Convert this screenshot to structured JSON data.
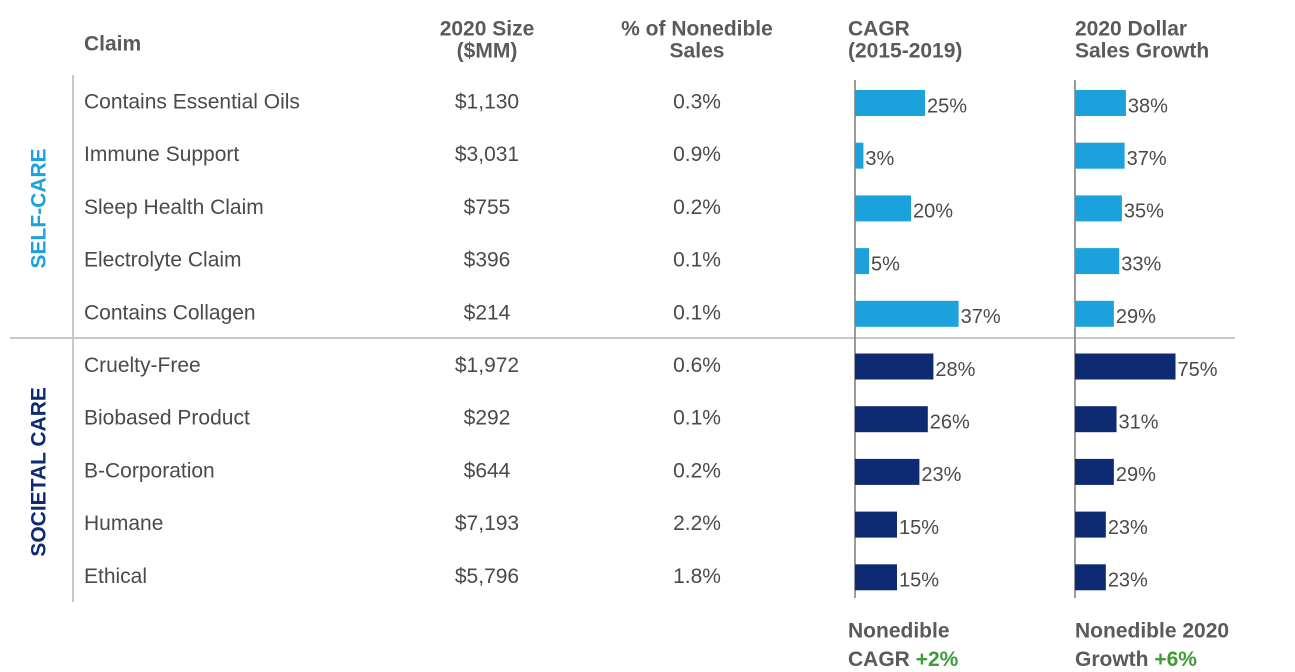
{
  "chart_data": {
    "type": "table_bar",
    "columns": [
      [
        "Claim"
      ],
      [
        "2020 Size",
        "($MM)"
      ],
      [
        "% of Nonedible",
        "Sales"
      ],
      [
        "CAGR",
        "(2015-2019)"
      ],
      [
        "2020 Dollar",
        "Sales Growth"
      ]
    ],
    "groups": [
      {
        "name": "SELF-CARE",
        "color": "#1ba1dc",
        "claims": [
          "Contains Essential Oils",
          "Immune Support",
          "Sleep Health Claim",
          "Electrolyte Claim",
          "Contains Collagen"
        ],
        "sizes": [
          "$1,130",
          "$3,031",
          "$755",
          "$396",
          "$214"
        ],
        "shares": [
          "0.3%",
          "0.9%",
          "0.2%",
          "0.1%",
          "0.1%"
        ],
        "cagr": {
          "values": [
            25,
            3,
            20,
            5,
            37
          ],
          "value_labels": [
            "25%",
            "3%",
            "20%",
            "5%",
            "37%"
          ]
        },
        "growth": {
          "values": [
            38,
            37,
            35,
            33,
            29
          ],
          "value_labels": [
            "38%",
            "37%",
            "35%",
            "33%",
            "29%"
          ]
        }
      },
      {
        "name": "SOCIETAL CARE",
        "color": "#0d2a73",
        "claims": [
          "Cruelty-Free",
          "Biobased Product",
          "B-Corporation",
          "Humane",
          "Ethical"
        ],
        "sizes": [
          "$1,972",
          "$292",
          "$644",
          "$7,193",
          "$5,796"
        ],
        "shares": [
          "0.6%",
          "0.1%",
          "0.2%",
          "2.2%",
          "1.8%"
        ],
        "cagr": {
          "values": [
            28,
            26,
            23,
            15,
            15
          ],
          "value_labels": [
            "28%",
            "26%",
            "23%",
            "15%",
            "15%"
          ]
        },
        "growth": {
          "values": [
            75,
            31,
            29,
            23,
            23
          ],
          "value_labels": [
            "75%",
            "31%",
            "29%",
            "23%",
            "23%"
          ]
        }
      }
    ],
    "footnotes": [
      {
        "lines": [
          "Nonedible",
          "CAGR"
        ],
        "label": "+2%"
      },
      {
        "lines": [
          "Nonedible 2020",
          "Growth"
        ],
        "label": "+6%"
      }
    ]
  }
}
